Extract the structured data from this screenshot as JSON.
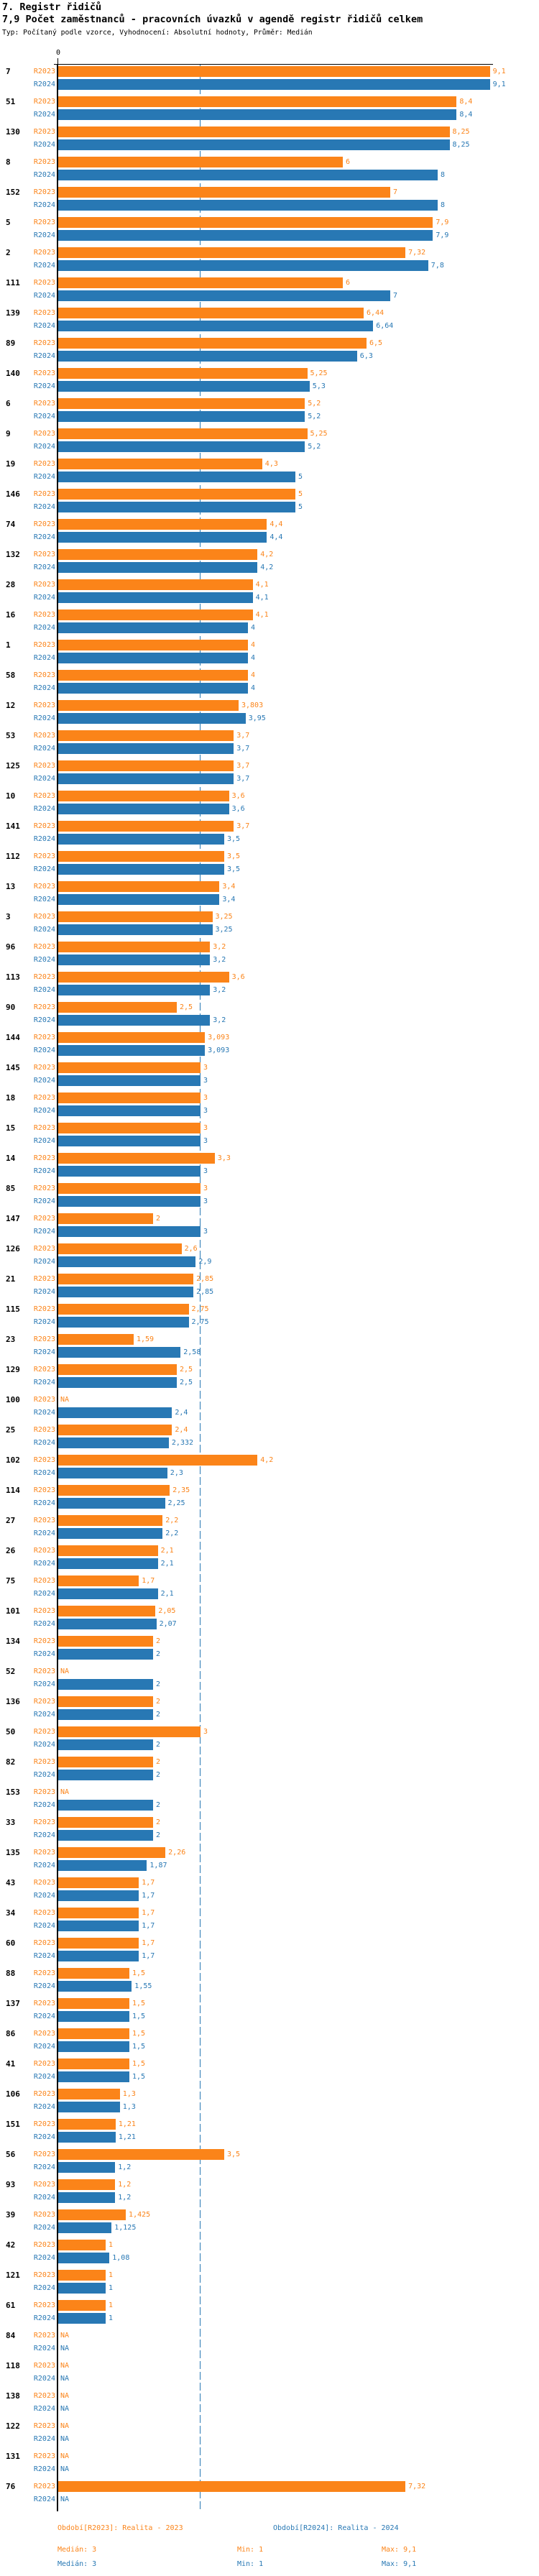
{
  "page": {
    "title": "7. Registr řidičů",
    "subtitle": "7,9 Počet zaměstnanců - pracovních úvazků v agendě registr řidičů celkem",
    "meta": "Typ: Počítaný podle vzorce, Vyhodnocení: Absolutní hodnoty, Průměr: Medián"
  },
  "chart_data": {
    "type": "bar",
    "orientation": "horizontal",
    "value_axis": {
      "zero_label": "0",
      "min": 0,
      "visible_max": 10,
      "decimal_separator": ","
    },
    "median_line": {
      "r2023": 3,
      "r2024": 3
    },
    "legend_position": "bottom",
    "series_meta": [
      {
        "id": "R2023",
        "legend": "Období[R2023]: Realita - 2023",
        "color": "#fb8419",
        "median": "Medián: 3",
        "min": "Min: 1",
        "max": "Max: 9,1"
      },
      {
        "id": "R2024",
        "legend": "Období[R2024]: Realita - 2024",
        "color": "#2878b4",
        "median": "Medián: 3",
        "min": "Min: 1",
        "max": "Max: 9,1"
      }
    ],
    "rows": [
      {
        "category": "7",
        "r2023_value": 9.1,
        "r2023_label": "9,1",
        "r2024_value": 9.1,
        "r2024_label": "9,1"
      },
      {
        "category": "51",
        "r2023_value": 8.4,
        "r2023_label": "8,4",
        "r2024_value": 8.4,
        "r2024_label": "8,4"
      },
      {
        "category": "130",
        "r2023_value": 8.25,
        "r2023_label": "8,25",
        "r2024_value": 8.25,
        "r2024_label": "8,25"
      },
      {
        "category": "8",
        "r2023_value": 6,
        "r2023_label": "6",
        "r2024_value": 8,
        "r2024_label": "8"
      },
      {
        "category": "152",
        "r2023_value": 7,
        "r2023_label": "7",
        "r2024_value": 8,
        "r2024_label": "8"
      },
      {
        "category": "5",
        "r2023_value": 7.9,
        "r2023_label": "7,9",
        "r2024_value": 7.9,
        "r2024_label": "7,9"
      },
      {
        "category": "2",
        "r2023_value": 7.32,
        "r2023_label": "7,32",
        "r2024_value": 7.8,
        "r2024_label": "7,8"
      },
      {
        "category": "111",
        "r2023_value": 6,
        "r2023_label": "6",
        "r2024_value": 7,
        "r2024_label": "7"
      },
      {
        "category": "139",
        "r2023_value": 6.44,
        "r2023_label": "6,44",
        "r2024_value": 6.64,
        "r2024_label": "6,64"
      },
      {
        "category": "89",
        "r2023_value": 6.5,
        "r2023_label": "6,5",
        "r2024_value": 6.3,
        "r2024_label": "6,3"
      },
      {
        "category": "140",
        "r2023_value": 5.25,
        "r2023_label": "5,25",
        "r2024_value": 5.3,
        "r2024_label": "5,3"
      },
      {
        "category": "6",
        "r2023_value": 5.2,
        "r2023_label": "5,2",
        "r2024_value": 5.2,
        "r2024_label": "5,2"
      },
      {
        "category": "9",
        "r2023_value": 5.25,
        "r2023_label": "5,25",
        "r2024_value": 5.2,
        "r2024_label": "5,2"
      },
      {
        "category": "19",
        "r2023_value": 4.3,
        "r2023_label": "4,3",
        "r2024_value": 5,
        "r2024_label": "5"
      },
      {
        "category": "146",
        "r2023_value": 5,
        "r2023_label": "5",
        "r2024_value": 5,
        "r2024_label": "5"
      },
      {
        "category": "74",
        "r2023_value": 4.4,
        "r2023_label": "4,4",
        "r2024_value": 4.4,
        "r2024_label": "4,4"
      },
      {
        "category": "132",
        "r2023_value": 4.2,
        "r2023_label": "4,2",
        "r2024_value": 4.2,
        "r2024_label": "4,2"
      },
      {
        "category": "28",
        "r2023_value": 4.1,
        "r2023_label": "4,1",
        "r2024_value": 4.1,
        "r2024_label": "4,1"
      },
      {
        "category": "16",
        "r2023_value": 4.1,
        "r2023_label": "4,1",
        "r2024_value": 4,
        "r2024_label": "4"
      },
      {
        "category": "1",
        "r2023_value": 4,
        "r2023_label": "4",
        "r2024_value": 4,
        "r2024_label": "4"
      },
      {
        "category": "58",
        "r2023_value": 4,
        "r2023_label": "4",
        "r2024_value": 4,
        "r2024_label": "4"
      },
      {
        "category": "12",
        "r2023_value": 3.803,
        "r2023_label": "3,803",
        "r2024_value": 3.95,
        "r2024_label": "3,95"
      },
      {
        "category": "53",
        "r2023_value": 3.7,
        "r2023_label": "3,7",
        "r2024_value": 3.7,
        "r2024_label": "3,7"
      },
      {
        "category": "125",
        "r2023_value": 3.7,
        "r2023_label": "3,7",
        "r2024_value": 3.7,
        "r2024_label": "3,7"
      },
      {
        "category": "10",
        "r2023_value": 3.6,
        "r2023_label": "3,6",
        "r2024_value": 3.6,
        "r2024_label": "3,6"
      },
      {
        "category": "141",
        "r2023_value": 3.7,
        "r2023_label": "3,7",
        "r2024_value": 3.5,
        "r2024_label": "3,5"
      },
      {
        "category": "112",
        "r2023_value": 3.5,
        "r2023_label": "3,5",
        "r2024_value": 3.5,
        "r2024_label": "3,5"
      },
      {
        "category": "13",
        "r2023_value": 3.4,
        "r2023_label": "3,4",
        "r2024_value": 3.4,
        "r2024_label": "3,4"
      },
      {
        "category": "3",
        "r2023_value": 3.25,
        "r2023_label": "3,25",
        "r2024_value": 3.25,
        "r2024_label": "3,25"
      },
      {
        "category": "96",
        "r2023_value": 3.2,
        "r2023_label": "3,2",
        "r2024_value": 3.2,
        "r2024_label": "3,2"
      },
      {
        "category": "113",
        "r2023_value": 3.6,
        "r2023_label": "3,6",
        "r2024_value": 3.2,
        "r2024_label": "3,2"
      },
      {
        "category": "90",
        "r2023_value": 2.5,
        "r2023_label": "2,5",
        "r2024_value": 3.2,
        "r2024_label": "3,2"
      },
      {
        "category": "144",
        "r2023_value": 3.093,
        "r2023_label": "3,093",
        "r2024_value": 3.093,
        "r2024_label": "3,093"
      },
      {
        "category": "145",
        "r2023_value": 3,
        "r2023_label": "3",
        "r2024_value": 3,
        "r2024_label": "3"
      },
      {
        "category": "18",
        "r2023_value": 3,
        "r2023_label": "3",
        "r2024_value": 3,
        "r2024_label": "3"
      },
      {
        "category": "15",
        "r2023_value": 3,
        "r2023_label": "3",
        "r2024_value": 3,
        "r2024_label": "3"
      },
      {
        "category": "14",
        "r2023_value": 3.3,
        "r2023_label": "3,3",
        "r2024_value": 3,
        "r2024_label": "3"
      },
      {
        "category": "85",
        "r2023_value": 3,
        "r2023_label": "3",
        "r2024_value": 3,
        "r2024_label": "3"
      },
      {
        "category": "147",
        "r2023_value": 2,
        "r2023_label": "2",
        "r2024_value": 3,
        "r2024_label": "3"
      },
      {
        "category": "126",
        "r2023_value": 2.6,
        "r2023_label": "2,6",
        "r2024_value": 2.9,
        "r2024_label": "2,9"
      },
      {
        "category": "21",
        "r2023_value": 2.85,
        "r2023_label": "2,85",
        "r2024_value": 2.85,
        "r2024_label": "2,85"
      },
      {
        "category": "115",
        "r2023_value": 2.75,
        "r2023_label": "2,75",
        "r2024_value": 2.75,
        "r2024_label": "2,75"
      },
      {
        "category": "23",
        "r2023_value": 1.59,
        "r2023_label": "1,59",
        "r2024_value": 2.58,
        "r2024_label": "2,58"
      },
      {
        "category": "129",
        "r2023_value": 2.5,
        "r2023_label": "2,5",
        "r2024_value": 2.5,
        "r2024_label": "2,5"
      },
      {
        "category": "100",
        "r2023_value": null,
        "r2023_label": "NA",
        "r2024_value": 2.4,
        "r2024_label": "2,4"
      },
      {
        "category": "25",
        "r2023_value": 2.4,
        "r2023_label": "2,4",
        "r2024_value": 2.332,
        "r2024_label": "2,332"
      },
      {
        "category": "102",
        "r2023_value": 4.2,
        "r2023_label": "4,2",
        "r2024_value": 2.3,
        "r2024_label": "2,3"
      },
      {
        "category": "114",
        "r2023_value": 2.35,
        "r2023_label": "2,35",
        "r2024_value": 2.25,
        "r2024_label": "2,25"
      },
      {
        "category": "27",
        "r2023_value": 2.2,
        "r2023_label": "2,2",
        "r2024_value": 2.2,
        "r2024_label": "2,2"
      },
      {
        "category": "26",
        "r2023_value": 2.1,
        "r2023_label": "2,1",
        "r2024_value": 2.1,
        "r2024_label": "2,1"
      },
      {
        "category": "75",
        "r2023_value": 1.7,
        "r2023_label": "1,7",
        "r2024_value": 2.1,
        "r2024_label": "2,1"
      },
      {
        "category": "101",
        "r2023_value": 2.05,
        "r2023_label": "2,05",
        "r2024_value": 2.07,
        "r2024_label": "2,07"
      },
      {
        "category": "134",
        "r2023_value": 2,
        "r2023_label": "2",
        "r2024_value": 2,
        "r2024_label": "2"
      },
      {
        "category": "52",
        "r2023_value": null,
        "r2023_label": "NA",
        "r2024_value": 2,
        "r2024_label": "2"
      },
      {
        "category": "136",
        "r2023_value": 2,
        "r2023_label": "2",
        "r2024_value": 2,
        "r2024_label": "2"
      },
      {
        "category": "50",
        "r2023_value": 3,
        "r2023_label": "3",
        "r2024_value": 2,
        "r2024_label": "2"
      },
      {
        "category": "82",
        "r2023_value": 2,
        "r2023_label": "2",
        "r2024_value": 2,
        "r2024_label": "2"
      },
      {
        "category": "153",
        "r2023_value": null,
        "r2023_label": "NA",
        "r2024_value": 2,
        "r2024_label": "2"
      },
      {
        "category": "33",
        "r2023_value": 2,
        "r2023_label": "2",
        "r2024_value": 2,
        "r2024_label": "2"
      },
      {
        "category": "135",
        "r2023_value": 2.26,
        "r2023_label": "2,26",
        "r2024_value": 1.87,
        "r2024_label": "1,87"
      },
      {
        "category": "43",
        "r2023_value": 1.7,
        "r2023_label": "1,7",
        "r2024_value": 1.7,
        "r2024_label": "1,7"
      },
      {
        "category": "34",
        "r2023_value": 1.7,
        "r2023_label": "1,7",
        "r2024_value": 1.7,
        "r2024_label": "1,7"
      },
      {
        "category": "60",
        "r2023_value": 1.7,
        "r2023_label": "1,7",
        "r2024_value": 1.7,
        "r2024_label": "1,7"
      },
      {
        "category": "88",
        "r2023_value": 1.5,
        "r2023_label": "1,5",
        "r2024_value": 1.55,
        "r2024_label": "1,55"
      },
      {
        "category": "137",
        "r2023_value": 1.5,
        "r2023_label": "1,5",
        "r2024_value": 1.5,
        "r2024_label": "1,5"
      },
      {
        "category": "86",
        "r2023_value": 1.5,
        "r2023_label": "1,5",
        "r2024_value": 1.5,
        "r2024_label": "1,5"
      },
      {
        "category": "41",
        "r2023_value": 1.5,
        "r2023_label": "1,5",
        "r2024_value": 1.5,
        "r2024_label": "1,5"
      },
      {
        "category": "106",
        "r2023_value": 1.3,
        "r2023_label": "1,3",
        "r2024_value": 1.3,
        "r2024_label": "1,3"
      },
      {
        "category": "151",
        "r2023_value": 1.21,
        "r2023_label": "1,21",
        "r2024_value": 1.21,
        "r2024_label": "1,21"
      },
      {
        "category": "56",
        "r2023_value": 3.5,
        "r2023_label": "3,5",
        "r2024_value": 1.2,
        "r2024_label": "1,2"
      },
      {
        "category": "93",
        "r2023_value": 1.2,
        "r2023_label": "1,2",
        "r2024_value": 1.2,
        "r2024_label": "1,2"
      },
      {
        "category": "39",
        "r2023_value": 1.425,
        "r2023_label": "1,425",
        "r2024_value": 1.125,
        "r2024_label": "1,125"
      },
      {
        "category": "42",
        "r2023_value": 1,
        "r2023_label": "1",
        "r2024_value": 1.08,
        "r2024_label": "1,08"
      },
      {
        "category": "121",
        "r2023_value": 1,
        "r2023_label": "1",
        "r2024_value": 1,
        "r2024_label": "1"
      },
      {
        "category": "61",
        "r2023_value": 1,
        "r2023_label": "1",
        "r2024_value": 1,
        "r2024_label": "1"
      },
      {
        "category": "84",
        "r2023_value": null,
        "r2023_label": "NA",
        "r2024_value": null,
        "r2024_label": "NA"
      },
      {
        "category": "118",
        "r2023_value": null,
        "r2023_label": "NA",
        "r2024_value": null,
        "r2024_label": "NA"
      },
      {
        "category": "138",
        "r2023_value": null,
        "r2023_label": "NA",
        "r2024_value": null,
        "r2024_label": "NA"
      },
      {
        "category": "122",
        "r2023_value": null,
        "r2023_label": "NA",
        "r2024_value": null,
        "r2024_label": "NA"
      },
      {
        "category": "131",
        "r2023_value": null,
        "r2023_label": "NA",
        "r2024_value": null,
        "r2024_label": "NA"
      },
      {
        "category": "76",
        "r2023_value": 7.32,
        "r2023_label": "7,32",
        "r2024_value": null,
        "r2024_label": "NA"
      }
    ]
  }
}
